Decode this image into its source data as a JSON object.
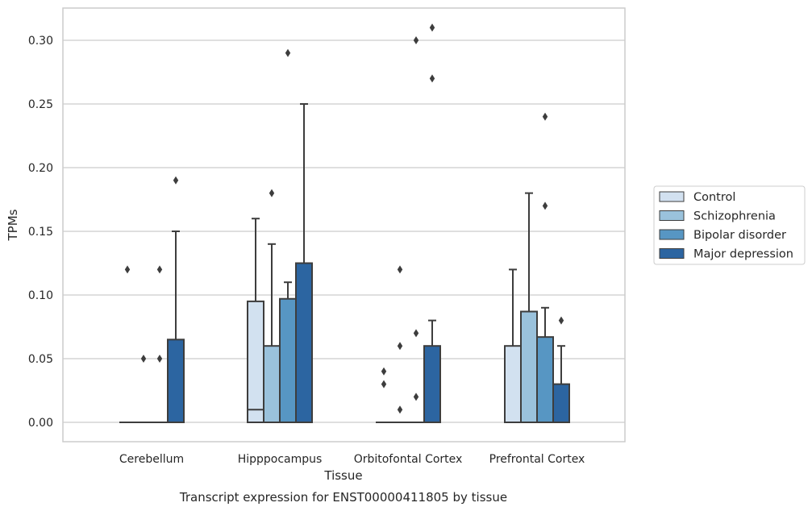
{
  "chart_data": {
    "type": "box",
    "xlabel": "Tissue",
    "ylabel": "TPMs",
    "caption": "Transcript expression for ENST00000411805 by tissue",
    "ylim": [
      -0.015,
      0.327
    ],
    "yticks": [
      "0.00",
      "0.05",
      "0.10",
      "0.15",
      "0.20",
      "0.25",
      "0.30"
    ],
    "ytick_values": [
      0,
      0.05,
      0.1,
      0.15,
      0.2,
      0.25,
      0.3
    ],
    "grid": true,
    "legend_position": "right",
    "categories": [
      "Cerebellum",
      "Hipppocampus",
      "Orbitofontal Cortex",
      "Prefrontal Cortex"
    ],
    "series": [
      {
        "name": "Control",
        "color": "#d2e1f0",
        "boxes": [
          {
            "q1": 0,
            "median": 0,
            "q3": 0,
            "whislo": 0,
            "whishi": 0,
            "fliers": [
              0.12
            ]
          },
          {
            "q1": 0,
            "median": 0.01,
            "q3": 0.095,
            "whislo": 0,
            "whishi": 0.16,
            "fliers": []
          },
          {
            "q1": 0,
            "median": 0,
            "q3": 0,
            "whislo": 0,
            "whishi": 0,
            "fliers": [
              0.04,
              0.03
            ]
          },
          {
            "q1": 0,
            "median": 0,
            "q3": 0.06,
            "whislo": 0,
            "whishi": 0.12,
            "fliers": []
          }
        ]
      },
      {
        "name": "Schizophrenia",
        "color": "#9ac2dc",
        "boxes": [
          {
            "q1": 0,
            "median": 0,
            "q3": 0,
            "whislo": 0,
            "whishi": 0,
            "fliers": [
              0.05
            ]
          },
          {
            "q1": 0,
            "median": 0,
            "q3": 0.06,
            "whislo": 0,
            "whishi": 0.14,
            "fliers": [
              0.18
            ]
          },
          {
            "q1": 0,
            "median": 0,
            "q3": 0,
            "whislo": 0,
            "whishi": 0,
            "fliers": [
              0.12,
              0.06,
              0.01
            ]
          },
          {
            "q1": 0,
            "median": 0,
            "q3": 0.087,
            "whislo": 0,
            "whishi": 0.18,
            "fliers": []
          }
        ]
      },
      {
        "name": "Bipolar disorder",
        "color": "#5796c3",
        "boxes": [
          {
            "q1": 0,
            "median": 0,
            "q3": 0,
            "whislo": 0,
            "whishi": 0,
            "fliers": [
              0.12,
              0.05
            ]
          },
          {
            "q1": 0,
            "median": 0,
            "q3": 0.097,
            "whislo": 0,
            "whishi": 0.11,
            "fliers": [
              0.29
            ]
          },
          {
            "q1": 0,
            "median": 0,
            "q3": 0,
            "whislo": 0,
            "whishi": 0,
            "fliers": [
              0.3,
              0.07,
              0.02
            ]
          },
          {
            "q1": 0,
            "median": 0,
            "q3": 0.067,
            "whislo": 0,
            "whishi": 0.09,
            "fliers": [
              0.24,
              0.17
            ]
          }
        ]
      },
      {
        "name": "Major depression",
        "color": "#2c65a1",
        "boxes": [
          {
            "q1": 0,
            "median": 0,
            "q3": 0.065,
            "whislo": 0,
            "whishi": 0.15,
            "fliers": [
              0.19
            ]
          },
          {
            "q1": 0,
            "median": 0,
            "q3": 0.125,
            "whislo": 0,
            "whishi": 0.25,
            "fliers": []
          },
          {
            "q1": 0,
            "median": 0,
            "q3": 0.06,
            "whislo": 0,
            "whishi": 0.08,
            "fliers": [
              0.31,
              0.27
            ]
          },
          {
            "q1": 0,
            "median": 0,
            "q3": 0.03,
            "whislo": 0,
            "whishi": 0.06,
            "fliers": [
              0.08
            ]
          }
        ]
      }
    ],
    "line_color": "#3d3d3d",
    "grid_color": "#cccccc"
  }
}
